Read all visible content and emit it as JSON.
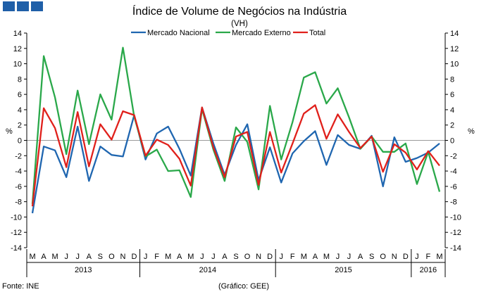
{
  "chart_data": {
    "type": "line",
    "title": "Índice de Volume de Negócios na Indústria",
    "subtitle": "(VH)",
    "ylabel_left": "%",
    "ylabel_right": "%",
    "ylim": [
      -14,
      14
    ],
    "yticks": [
      14,
      12,
      10,
      8,
      6,
      4,
      2,
      0,
      -2,
      -4,
      -6,
      -8,
      -10,
      -12,
      -14
    ],
    "categories": [
      "M",
      "A",
      "M",
      "J",
      "J",
      "A",
      "S",
      "O",
      "N",
      "D",
      "J",
      "F",
      "M",
      "A",
      "M",
      "J",
      "J",
      "A",
      "S",
      "O",
      "N",
      "D",
      "J",
      "F",
      "M",
      "A",
      "M",
      "J",
      "J",
      "A",
      "S",
      "O",
      "N",
      "D",
      "J",
      "F",
      "M"
    ],
    "years": [
      {
        "label": "2013",
        "start": 0,
        "end": 9
      },
      {
        "label": "2014",
        "start": 10,
        "end": 21
      },
      {
        "label": "2015",
        "start": 22,
        "end": 33
      },
      {
        "label": "2016",
        "start": 34,
        "end": 36
      }
    ],
    "series": [
      {
        "name": "Mercado Nacional",
        "color": "#1f66b0",
        "values": [
          -9.5,
          -0.8,
          -1.3,
          -4.8,
          1.8,
          -5.3,
          -0.8,
          -1.9,
          -2.1,
          3.3,
          -2.5,
          0.9,
          1.8,
          -1.1,
          -4.6,
          4.3,
          -0.4,
          -4.5,
          -0.6,
          2.1,
          -5.2,
          -0.9,
          -5.5,
          -1.7,
          -0.1,
          1.2,
          -3.2,
          0.7,
          -0.6,
          -1.1,
          0.6,
          -6.0,
          0.4,
          -2.8,
          -2.3,
          -1.6,
          -0.4
        ]
      },
      {
        "name": "Mercado Externo",
        "color": "#2aa84a",
        "values": [
          -8.3,
          11.0,
          5.6,
          -1.8,
          6.5,
          -0.5,
          6.0,
          2.7,
          12.1,
          3.1,
          -2.1,
          -1.2,
          -4.0,
          -3.9,
          -7.4,
          4.1,
          -1.2,
          -5.3,
          1.7,
          -0.2,
          -6.4,
          4.5,
          -2.5,
          2.4,
          8.2,
          8.9,
          4.8,
          6.8,
          3.0,
          -1.1,
          0.5,
          -1.5,
          -1.5,
          -0.4,
          -5.7,
          -1.5,
          -6.7
        ]
      },
      {
        "name": "Total",
        "color": "#e0201b",
        "values": [
          -8.6,
          4.2,
          1.6,
          -3.5,
          3.7,
          -3.4,
          2.1,
          0.1,
          3.8,
          3.3,
          -2.0,
          0.1,
          -0.6,
          -2.4,
          -5.9,
          4.3,
          -0.9,
          -4.8,
          0.5,
          1.1,
          -5.8,
          1.1,
          -4.2,
          -0.4,
          3.5,
          4.6,
          0.2,
          3.4,
          1.1,
          -1.0,
          0.5,
          -4.1,
          -0.5,
          -1.6,
          -3.8,
          -1.4,
          -3.3
        ]
      }
    ]
  },
  "footer": {
    "source": "Fonte: INE",
    "credit": "(Gráfico: GEE)"
  }
}
